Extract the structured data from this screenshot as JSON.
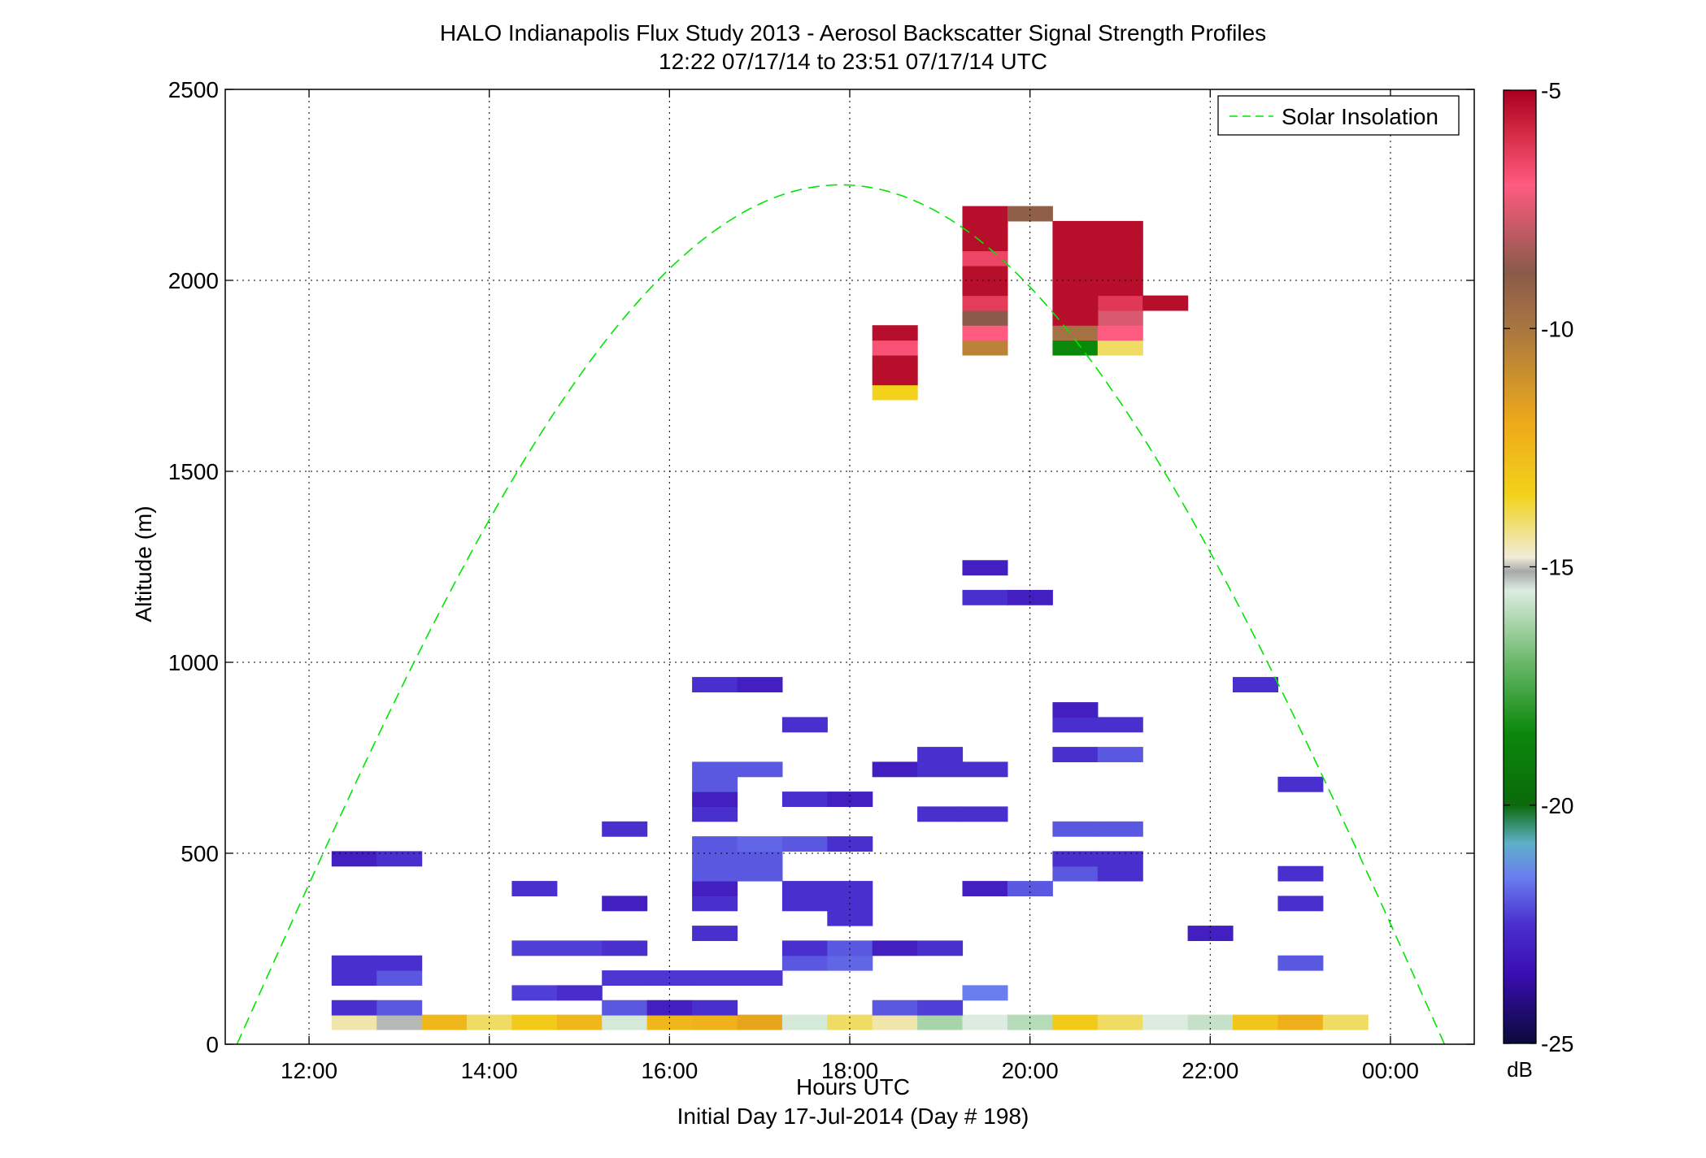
{
  "chart_data": {
    "type": "heatmap",
    "title": "HALO Indianapolis Flux Study 2013 - Aerosol Backscatter Signal Strength Profiles",
    "subtitle": "12:22 07/17/14 to 23:51 07/17/14  UTC",
    "xlabel": "Hours UTC",
    "xlabel2": "Initial Day 17-Jul-2014 (Day # 198)",
    "ylabel": "Altitude (m)",
    "xlim": [
      11.07,
      24.93
    ],
    "ylim": [
      0,
      2500
    ],
    "x_ticks": [
      12,
      14,
      16,
      18,
      20,
      22,
      24
    ],
    "x_tick_labels": [
      "12:00",
      "14:00",
      "16:00",
      "18:00",
      "20:00",
      "22:00",
      "00:00"
    ],
    "y_ticks": [
      0,
      500,
      1000,
      1500,
      2000,
      2500
    ],
    "y_tick_labels": [
      "0",
      "500",
      "1000",
      "1500",
      "2000",
      "2500"
    ],
    "grid": true,
    "legend": {
      "position": "top-right",
      "entries": [
        {
          "label": "Solar Insolation",
          "color": "#00e600",
          "style": "dashed"
        }
      ]
    },
    "colorbar": {
      "label": "dB",
      "range": [
        -25,
        -5
      ],
      "tick_values": [
        -5,
        -10,
        -15,
        -20,
        -25
      ],
      "tick_labels": [
        "-5",
        "-10",
        "-15",
        "-20",
        "-25"
      ]
    },
    "cell_width_hours": 0.5,
    "cell_height_m": 39,
    "solar_insolation": {
      "peak_time_hours": 17.8,
      "peak_altitude_equivalent": 2250,
      "zero_crossing_hours": [
        11.2,
        24.6
      ]
    },
    "cells": [
      {
        "t": 12.5,
        "alt": 58,
        "db": -14.5
      },
      {
        "t": 13.0,
        "alt": 58,
        "db": -15.2
      },
      {
        "t": 13.5,
        "alt": 58,
        "db": -12.5
      },
      {
        "t": 14.0,
        "alt": 58,
        "db": -14.0
      },
      {
        "t": 14.5,
        "alt": 58,
        "db": -13.2
      },
      {
        "t": 15.0,
        "alt": 58,
        "db": -12.5
      },
      {
        "t": 15.5,
        "alt": 58,
        "db": -15.6
      },
      {
        "t": 16.0,
        "alt": 58,
        "db": -12.5
      },
      {
        "t": 16.5,
        "alt": 58,
        "db": -12.3
      },
      {
        "t": 17.0,
        "alt": 58,
        "db": -11.8
      },
      {
        "t": 17.5,
        "alt": 58,
        "db": -15.6
      },
      {
        "t": 18.0,
        "alt": 58,
        "db": -14.0
      },
      {
        "t": 18.5,
        "alt": 58,
        "db": -14.5
      },
      {
        "t": 19.0,
        "alt": 58,
        "db": -16.2
      },
      {
        "t": 19.5,
        "alt": 58,
        "db": -15.5
      },
      {
        "t": 20.0,
        "alt": 58,
        "db": -16.0
      },
      {
        "t": 20.5,
        "alt": 58,
        "db": -13.2
      },
      {
        "t": 21.0,
        "alt": 58,
        "db": -14.0
      },
      {
        "t": 21.5,
        "alt": 58,
        "db": -15.5
      },
      {
        "t": 22.0,
        "alt": 58,
        "db": -15.8
      },
      {
        "t": 22.5,
        "alt": 58,
        "db": -13.0
      },
      {
        "t": 23.0,
        "alt": 58,
        "db": -12.2
      },
      {
        "t": 23.5,
        "alt": 58,
        "db": -14.0
      },
      {
        "t": 12.5,
        "alt": 96,
        "db": -22.5
      },
      {
        "t": 13.0,
        "alt": 96,
        "db": -22.0
      },
      {
        "t": 15.5,
        "alt": 96,
        "db": -22.0
      },
      {
        "t": 16.0,
        "alt": 96,
        "db": -23.0
      },
      {
        "t": 16.5,
        "alt": 96,
        "db": -22.5
      },
      {
        "t": 18.5,
        "alt": 96,
        "db": -22.0
      },
      {
        "t": 19.0,
        "alt": 96,
        "db": -22.3
      },
      {
        "t": 19.5,
        "alt": 135,
        "db": -21.5
      },
      {
        "t": 14.5,
        "alt": 135,
        "db": -22.3
      },
      {
        "t": 15.0,
        "alt": 135,
        "db": -22.6
      },
      {
        "t": 12.5,
        "alt": 174,
        "db": -22.5
      },
      {
        "t": 13.0,
        "alt": 174,
        "db": -22.0
      },
      {
        "t": 15.5,
        "alt": 174,
        "db": -22.4
      },
      {
        "t": 16.0,
        "alt": 174,
        "db": -22.4
      },
      {
        "t": 16.5,
        "alt": 174,
        "db": -22.4
      },
      {
        "t": 17.0,
        "alt": 174,
        "db": -22.4
      },
      {
        "t": 12.5,
        "alt": 213,
        "db": -22.5
      },
      {
        "t": 13.0,
        "alt": 213,
        "db": -22.5
      },
      {
        "t": 17.5,
        "alt": 213,
        "db": -22.0
      },
      {
        "t": 18.0,
        "alt": 213,
        "db": -21.8
      },
      {
        "t": 23.0,
        "alt": 213,
        "db": -22.0
      },
      {
        "t": 14.5,
        "alt": 252,
        "db": -22.3
      },
      {
        "t": 15.0,
        "alt": 252,
        "db": -22.3
      },
      {
        "t": 15.5,
        "alt": 252,
        "db": -22.5
      },
      {
        "t": 17.5,
        "alt": 252,
        "db": -22.5
      },
      {
        "t": 18.0,
        "alt": 252,
        "db": -22.0
      },
      {
        "t": 18.5,
        "alt": 252,
        "db": -23.0
      },
      {
        "t": 19.0,
        "alt": 252,
        "db": -22.5
      },
      {
        "t": 16.5,
        "alt": 291,
        "db": -22.5
      },
      {
        "t": 22.0,
        "alt": 291,
        "db": -23.0
      },
      {
        "t": 18.0,
        "alt": 330,
        "db": -22.5
      },
      {
        "t": 15.5,
        "alt": 369,
        "db": -23.0
      },
      {
        "t": 16.5,
        "alt": 369,
        "db": -22.5
      },
      {
        "t": 17.5,
        "alt": 369,
        "db": -22.5
      },
      {
        "t": 18.0,
        "alt": 369,
        "db": -22.5
      },
      {
        "t": 23.0,
        "alt": 369,
        "db": -22.5
      },
      {
        "t": 14.5,
        "alt": 408,
        "db": -22.5
      },
      {
        "t": 16.5,
        "alt": 408,
        "db": -23.0
      },
      {
        "t": 17.5,
        "alt": 408,
        "db": -22.5
      },
      {
        "t": 18.0,
        "alt": 408,
        "db": -22.5
      },
      {
        "t": 19.5,
        "alt": 408,
        "db": -23.0
      },
      {
        "t": 20.0,
        "alt": 408,
        "db": -22.0
      },
      {
        "t": 16.5,
        "alt": 447,
        "db": -22.0
      },
      {
        "t": 17.0,
        "alt": 447,
        "db": -22.0
      },
      {
        "t": 20.5,
        "alt": 447,
        "db": -22.0
      },
      {
        "t": 21.0,
        "alt": 447,
        "db": -22.5
      },
      {
        "t": 23.0,
        "alt": 447,
        "db": -22.5
      },
      {
        "t": 12.5,
        "alt": 486,
        "db": -23.0
      },
      {
        "t": 13.0,
        "alt": 486,
        "db": -22.5
      },
      {
        "t": 16.5,
        "alt": 486,
        "db": -22.0
      },
      {
        "t": 17.0,
        "alt": 486,
        "db": -22.0
      },
      {
        "t": 20.5,
        "alt": 486,
        "db": -22.5
      },
      {
        "t": 21.0,
        "alt": 486,
        "db": -22.5
      },
      {
        "t": 16.5,
        "alt": 525,
        "db": -22.0
      },
      {
        "t": 17.0,
        "alt": 525,
        "db": -21.8
      },
      {
        "t": 17.5,
        "alt": 525,
        "db": -22.0
      },
      {
        "t": 18.0,
        "alt": 525,
        "db": -22.5
      },
      {
        "t": 15.5,
        "alt": 564,
        "db": -22.5
      },
      {
        "t": 20.5,
        "alt": 564,
        "db": -22.0
      },
      {
        "t": 21.0,
        "alt": 564,
        "db": -22.0
      },
      {
        "t": 16.5,
        "alt": 603,
        "db": -22.5
      },
      {
        "t": 19.0,
        "alt": 603,
        "db": -22.5
      },
      {
        "t": 19.5,
        "alt": 603,
        "db": -22.5
      },
      {
        "t": 17.5,
        "alt": 642,
        "db": -22.5
      },
      {
        "t": 18.0,
        "alt": 642,
        "db": -23.0
      },
      {
        "t": 16.5,
        "alt": 642,
        "db": -23.0
      },
      {
        "t": 23.0,
        "alt": 681,
        "db": -22.5
      },
      {
        "t": 16.5,
        "alt": 681,
        "db": -22.0
      },
      {
        "t": 16.5,
        "alt": 720,
        "db": -22.0
      },
      {
        "t": 17.0,
        "alt": 720,
        "db": -22.0
      },
      {
        "t": 18.5,
        "alt": 720,
        "db": -23.0
      },
      {
        "t": 19.0,
        "alt": 720,
        "db": -22.5
      },
      {
        "t": 19.5,
        "alt": 720,
        "db": -22.5
      },
      {
        "t": 19.0,
        "alt": 759,
        "db": -22.5
      },
      {
        "t": 20.5,
        "alt": 759,
        "db": -22.5
      },
      {
        "t": 21.0,
        "alt": 759,
        "db": -22.0
      },
      {
        "t": 17.5,
        "alt": 837,
        "db": -22.5
      },
      {
        "t": 20.5,
        "alt": 837,
        "db": -22.5
      },
      {
        "t": 21.0,
        "alt": 837,
        "db": -22.5
      },
      {
        "t": 20.5,
        "alt": 876,
        "db": -23.0
      },
      {
        "t": 16.5,
        "alt": 942,
        "db": -22.5
      },
      {
        "t": 17.0,
        "alt": 942,
        "db": -23.0
      },
      {
        "t": 22.5,
        "alt": 942,
        "db": -22.5
      },
      {
        "t": 19.5,
        "alt": 1170,
        "db": -22.5
      },
      {
        "t": 20.0,
        "alt": 1170,
        "db": -23.0
      },
      {
        "t": 19.5,
        "alt": 1248,
        "db": -23.0
      },
      {
        "t": 18.5,
        "alt": 1707,
        "db": -13.5
      },
      {
        "t": 18.5,
        "alt": 1746,
        "db": -5.3
      },
      {
        "t": 18.5,
        "alt": 1785,
        "db": -5.3
      },
      {
        "t": 18.5,
        "alt": 1824,
        "db": -6.8
      },
      {
        "t": 18.5,
        "alt": 1863,
        "db": -5.3
      },
      {
        "t": 19.5,
        "alt": 1824,
        "db": -10.5
      },
      {
        "t": 19.5,
        "alt": 1863,
        "db": -7.0
      },
      {
        "t": 19.5,
        "alt": 1902,
        "db": -8.8
      },
      {
        "t": 19.5,
        "alt": 1941,
        "db": -6.3
      },
      {
        "t": 19.5,
        "alt": 1980,
        "db": -5.3
      },
      {
        "t": 19.5,
        "alt": 2019,
        "db": -5.3
      },
      {
        "t": 19.5,
        "alt": 2058,
        "db": -6.5
      },
      {
        "t": 19.5,
        "alt": 2097,
        "db": -5.3
      },
      {
        "t": 19.5,
        "alt": 2136,
        "db": -5.3
      },
      {
        "t": 19.5,
        "alt": 2175,
        "db": -5.3
      },
      {
        "t": 20.0,
        "alt": 2175,
        "db": -9.0
      },
      {
        "t": 20.5,
        "alt": 1824,
        "db": -18.5
      },
      {
        "t": 20.5,
        "alt": 1863,
        "db": -9.8
      },
      {
        "t": 21.0,
        "alt": 1824,
        "db": -14.0
      },
      {
        "t": 21.0,
        "alt": 1863,
        "db": -7.0
      },
      {
        "t": 21.0,
        "alt": 1902,
        "db": -7.6
      },
      {
        "t": 21.0,
        "alt": 1941,
        "db": -6.2
      },
      {
        "t": 21.5,
        "alt": 1941,
        "db": -5.3
      },
      {
        "t": 20.5,
        "alt": 1902,
        "db": -5.3
      },
      {
        "t": 20.5,
        "alt": 1941,
        "db": -5.3
      },
      {
        "t": 20.5,
        "alt": 1980,
        "db": -5.3
      },
      {
        "t": 20.5,
        "alt": 2019,
        "db": -5.3
      },
      {
        "t": 20.5,
        "alt": 2058,
        "db": -5.3
      },
      {
        "t": 20.5,
        "alt": 2097,
        "db": -5.3
      },
      {
        "t": 20.5,
        "alt": 2136,
        "db": -5.3
      },
      {
        "t": 21.0,
        "alt": 1980,
        "db": -5.3
      },
      {
        "t": 21.0,
        "alt": 2019,
        "db": -5.3
      },
      {
        "t": 21.0,
        "alt": 2058,
        "db": -5.3
      },
      {
        "t": 21.0,
        "alt": 2097,
        "db": -5.3
      },
      {
        "t": 21.0,
        "alt": 2136,
        "db": -5.3
      }
    ]
  },
  "colors": {
    "grid": "#000000",
    "solar_line": "#00e600",
    "colormap": [
      [
        -25,
        "#0a0a3a"
      ],
      [
        -23.5,
        "#3b0fb5"
      ],
      [
        -22.5,
        "#4a2fcf"
      ],
      [
        -21.5,
        "#6a7ef0"
      ],
      [
        -20.8,
        "#5fb0c8"
      ],
      [
        -20,
        "#0a6a0a"
      ],
      [
        -18.5,
        "#0a880a"
      ],
      [
        -17,
        "#6ab86a"
      ],
      [
        -15.5,
        "#dcece0"
      ],
      [
        -15.1,
        "#a8a8a8"
      ],
      [
        -14.8,
        "#f0ecd8"
      ],
      [
        -13.5,
        "#f2d21a"
      ],
      [
        -12,
        "#eeaa1a"
      ],
      [
        -10,
        "#a87640"
      ],
      [
        -8.8,
        "#8a5a4a"
      ],
      [
        -7,
        "#ff5a80"
      ],
      [
        -6,
        "#d8304a"
      ],
      [
        -5,
        "#a8001e"
      ]
    ]
  }
}
